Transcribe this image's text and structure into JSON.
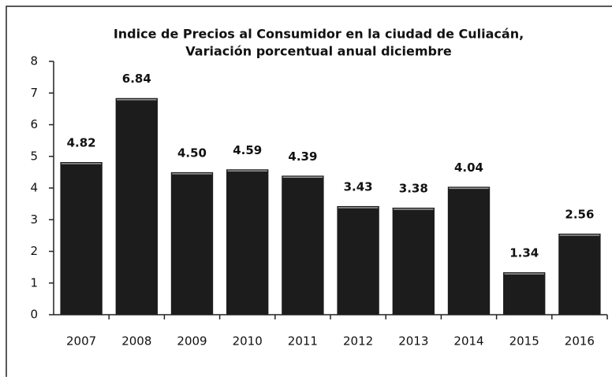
{
  "chart_data": {
    "type": "bar",
    "title": [
      "Indice de Precios al Consumidor en la ciudad de Culiacán,",
      "Variación porcentual anual diciembre"
    ],
    "categories": [
      "2007",
      "2008",
      "2009",
      "2010",
      "2011",
      "2012",
      "2013",
      "2014",
      "2015",
      "2016"
    ],
    "values": [
      4.82,
      6.84,
      4.5,
      4.59,
      4.39,
      3.43,
      3.38,
      4.04,
      1.34,
      2.56
    ],
    "value_labels": [
      "4.82",
      "6.84",
      "4.50",
      "4.59",
      "4.39",
      "3.43",
      "3.38",
      "4.04",
      "1.34",
      "2.56"
    ],
    "color": "#1c1c1c",
    "ylim": [
      0,
      8
    ],
    "yticks": [
      0,
      1,
      2,
      3,
      4,
      5,
      6,
      7,
      8
    ],
    "grid": false
  }
}
